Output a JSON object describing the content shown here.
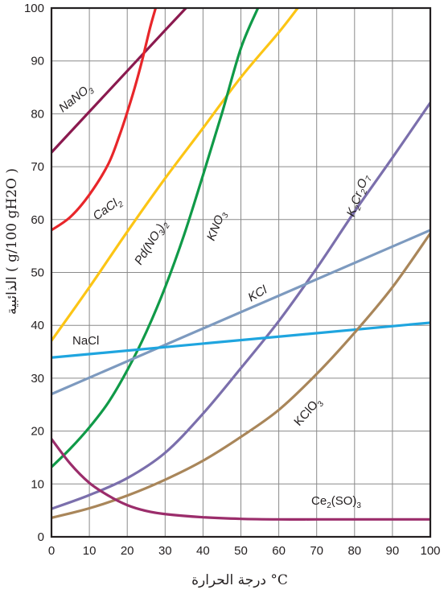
{
  "chart_data": {
    "type": "line",
    "xlabel": "درجة الحرارة °C",
    "ylabel": "الذائبية ( g/100 gH2O )",
    "xlim": [
      0,
      100
    ],
    "ylim": [
      0,
      100
    ],
    "xticks": [
      "0",
      "10",
      "20",
      "30",
      "40",
      "50",
      "60",
      "70",
      "80",
      "90",
      "100"
    ],
    "yticks": [
      "0",
      "10",
      "20",
      "30",
      "40",
      "50",
      "60",
      "70",
      "80",
      "90",
      "100"
    ],
    "grid": true,
    "series": [
      {
        "name": "NaNO3",
        "label_parts": [
          [
            "NaNO",
            ""
          ],
          [
            "3",
            "sub"
          ]
        ],
        "italic": true,
        "color": "#8b1a4f",
        "x": [
          0,
          10,
          20,
          30,
          35.5
        ],
        "y": [
          72.7,
          80.4,
          88.1,
          95.8,
          100
        ]
      },
      {
        "name": "CaCl2",
        "label_parts": [
          [
            "CaCl",
            ""
          ],
          [
            "2",
            "sub"
          ]
        ],
        "italic": true,
        "color": "#e8262a",
        "x": [
          0,
          5,
          10,
          15,
          18,
          20,
          22,
          24,
          26,
          27.5
        ],
        "y": [
          58,
          60.5,
          64.7,
          70.5,
          76,
          80.3,
          85,
          90.3,
          96.2,
          100
        ]
      },
      {
        "name": "Pd(NO3)2",
        "label_parts": [
          [
            "Pd(NO",
            ""
          ],
          [
            "3",
            "sub"
          ],
          [
            ")",
            ""
          ],
          [
            "2",
            "sub"
          ]
        ],
        "italic": true,
        "color": "#fcc515",
        "x": [
          0,
          10,
          20,
          30,
          40,
          50,
          60,
          65
        ],
        "y": [
          37.1,
          47.2,
          57.7,
          67.8,
          77.3,
          86.9,
          95.4,
          100
        ]
      },
      {
        "name": "KNO3",
        "label_parts": [
          [
            "KNO",
            ""
          ],
          [
            "3",
            "sub"
          ]
        ],
        "italic": true,
        "color": "#109a48",
        "x": [
          0,
          5,
          10,
          15,
          20,
          25,
          30,
          35,
          40,
          45,
          50,
          54.5
        ],
        "y": [
          13.2,
          16.7,
          20.7,
          25.4,
          31.5,
          38.7,
          47.2,
          57.1,
          68.4,
          80.1,
          92.4,
          100
        ]
      },
      {
        "name": "K2Cr2O7",
        "label_parts": [
          [
            "K",
            ""
          ],
          [
            "2",
            "sub"
          ],
          [
            "Cr",
            ""
          ],
          [
            "2",
            "sub"
          ],
          [
            "O",
            ""
          ],
          [
            "7",
            "sub"
          ]
        ],
        "italic": true,
        "color": "#7b6fac",
        "x": [
          0,
          10,
          20,
          30,
          40,
          50,
          60,
          70,
          80,
          90,
          100
        ],
        "y": [
          5.3,
          7.9,
          11.1,
          15.9,
          23.3,
          31.9,
          40.8,
          50.8,
          61.5,
          71.7,
          82.1
        ]
      },
      {
        "name": "KCl",
        "label_parts": [
          [
            "KCl",
            ""
          ]
        ],
        "italic": true,
        "color": "#7d9abf",
        "x": [
          0,
          100
        ],
        "y": [
          27,
          58
        ]
      },
      {
        "name": "NaCl",
        "label_parts": [
          [
            "NaCl",
            ""
          ]
        ],
        "italic": false,
        "color": "#1fa5df",
        "x": [
          0,
          100
        ],
        "y": [
          33.9,
          40.5
        ]
      },
      {
        "name": "KClO3",
        "label_parts": [
          [
            "KClO",
            ""
          ],
          [
            "3",
            "sub"
          ]
        ],
        "italic": false,
        "color": "#a9865a",
        "x": [
          0,
          10,
          20,
          30,
          40,
          50,
          60,
          70,
          80,
          90,
          100
        ],
        "y": [
          3.6,
          5.4,
          7.8,
          10.8,
          14.4,
          18.9,
          24,
          30.8,
          38.6,
          47.2,
          57.4
        ]
      },
      {
        "name": "Ce2(SO4)3",
        "label_parts": [
          [
            "Ce",
            ""
          ],
          [
            "2",
            "sub"
          ],
          [
            "(SO)",
            ""
          ],
          [
            "3",
            "sub"
          ]
        ],
        "italic": false,
        "color": "#9b2d6b",
        "x": [
          0,
          5,
          10,
          15,
          20,
          25,
          30,
          40,
          50,
          60,
          70,
          80,
          90,
          100
        ],
        "y": [
          18.5,
          13.8,
          10.2,
          7.8,
          6.0,
          4.9,
          4.3,
          3.7,
          3.4,
          3.3,
          3.3,
          3.3,
          3.3,
          3.3
        ]
      }
    ]
  }
}
